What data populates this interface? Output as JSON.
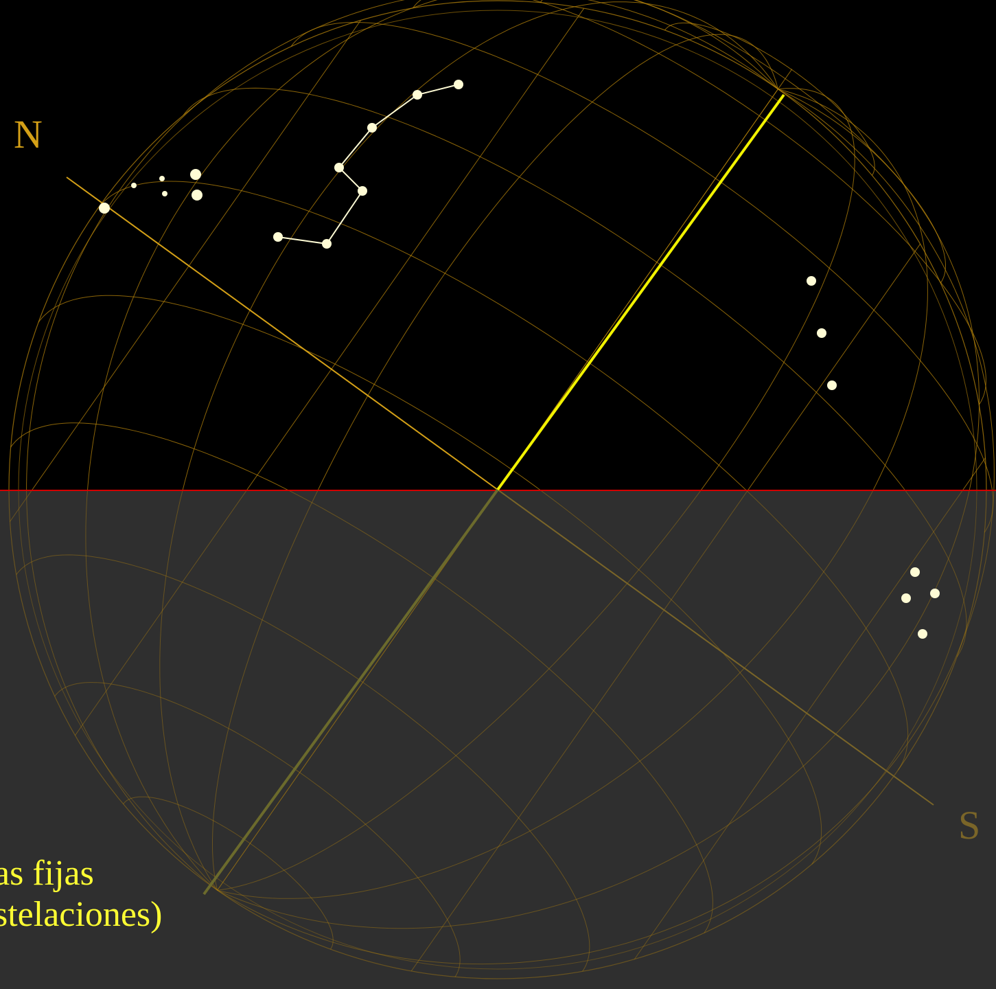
{
  "labels": {
    "north": "N",
    "south": "S"
  },
  "caption": {
    "line1": "as fijas",
    "line2": "stelaciones)"
  },
  "colors": {
    "sky_background": "#000000",
    "below_horizon_background": "#2f2f2f",
    "horizon_line": "#d40000",
    "grid_lines": "#b8860b",
    "north_label": "#d4a017",
    "south_label": "#7a6528",
    "ecliptic_line_above": "#f2f200",
    "ecliptic_line_below": "#6b6a2c",
    "stars": "#fffcd5",
    "constellation_lines": "#fffcd5",
    "caption_text": "#ffff33"
  }
}
